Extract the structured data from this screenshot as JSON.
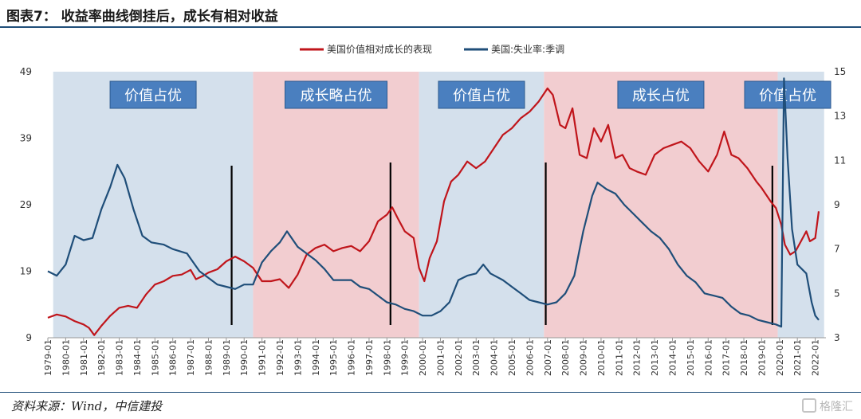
{
  "header": {
    "title": "图表7： 收益率曲线倒挂后，成长有相对收益"
  },
  "footer": {
    "source": "资料来源：Wind，中信建投",
    "watermark": "格隆汇"
  },
  "chart_data": {
    "type": "line",
    "legend": [
      "美国价值相对成长的表现",
      "美国:失业率:季调"
    ],
    "legend_position": "top-center",
    "x_tick_labels": [
      "1979-01",
      "1980-01",
      "1981-01",
      "1982-01",
      "1983-01",
      "1984-01",
      "1985-01",
      "1986-01",
      "1987-01",
      "1988-01",
      "1989-01",
      "1990-01",
      "1991-01",
      "1992-01",
      "1993-01",
      "1994-01",
      "1995-01",
      "1996-01",
      "1997-01",
      "1998-01",
      "1999-01",
      "2000-01",
      "2001-01",
      "2002-01",
      "2003-01",
      "2004-01",
      "2005-01",
      "2006-01",
      "2007-01",
      "2008-01",
      "2009-01",
      "2010-01",
      "2011-01",
      "2012-01",
      "2013-01",
      "2014-01",
      "2015-01",
      "2016-01",
      "2017-01",
      "2018-01",
      "2019-01",
      "2020-01",
      "2021-01",
      "2022-01"
    ],
    "y_left": {
      "ticks": [
        "9",
        "19",
        "29",
        "39",
        "49"
      ],
      "range": [
        9,
        49
      ]
    },
    "y_right": {
      "ticks": [
        "3",
        "5",
        "7",
        "9",
        "11",
        "13",
        "15"
      ],
      "range": [
        3,
        15
      ]
    },
    "regions": [
      {
        "label": "价值占优",
        "start": 1979.3,
        "end": 1990.5,
        "color": "#d4e0ec"
      },
      {
        "label": "成长略占优",
        "start": 1990.5,
        "end": 1999.8,
        "color": "#f2cdd0"
      },
      {
        "label": "价值占优",
        "start": 1999.8,
        "end": 2006.8,
        "color": "#d4e0ec"
      },
      {
        "label": "成长占优",
        "start": 2006.8,
        "end": 2019.9,
        "color": "#f2cdd0"
      },
      {
        "label": "价值占优",
        "start": 2019.9,
        "end": 2022.5,
        "color": "#d4e0ec"
      }
    ],
    "inversion_markers": [
      1989.3,
      1998.2,
      2006.9,
      2019.6
    ],
    "series": [
      {
        "name": "美国价值相对成长的表现",
        "axis": "left",
        "color": "#c0151b",
        "points": [
          [
            1979.0,
            12.0
          ],
          [
            1979.5,
            12.5
          ],
          [
            1980.0,
            12.2
          ],
          [
            1980.5,
            11.5
          ],
          [
            1981.0,
            11.0
          ],
          [
            1981.3,
            10.5
          ],
          [
            1981.6,
            9.4
          ],
          [
            1982.0,
            10.8
          ],
          [
            1982.5,
            12.3
          ],
          [
            1983.0,
            13.5
          ],
          [
            1983.5,
            13.8
          ],
          [
            1984.0,
            13.5
          ],
          [
            1984.5,
            15.5
          ],
          [
            1985.0,
            17.0
          ],
          [
            1985.5,
            17.5
          ],
          [
            1986.0,
            18.3
          ],
          [
            1986.5,
            18.5
          ],
          [
            1987.0,
            19.2
          ],
          [
            1987.3,
            17.8
          ],
          [
            1987.7,
            18.3
          ],
          [
            1988.0,
            18.8
          ],
          [
            1988.5,
            19.3
          ],
          [
            1989.0,
            20.5
          ],
          [
            1989.5,
            21.2
          ],
          [
            1990.0,
            20.5
          ],
          [
            1990.5,
            19.5
          ],
          [
            1991.0,
            17.5
          ],
          [
            1991.5,
            17.5
          ],
          [
            1992.0,
            17.8
          ],
          [
            1992.5,
            16.5
          ],
          [
            1993.0,
            18.5
          ],
          [
            1993.5,
            21.5
          ],
          [
            1994.0,
            22.5
          ],
          [
            1994.5,
            23.0
          ],
          [
            1995.0,
            22.0
          ],
          [
            1995.5,
            22.5
          ],
          [
            1996.0,
            22.8
          ],
          [
            1996.5,
            22.0
          ],
          [
            1997.0,
            23.5
          ],
          [
            1997.5,
            26.5
          ],
          [
            1998.0,
            27.5
          ],
          [
            1998.3,
            28.6
          ],
          [
            1998.6,
            27.0
          ],
          [
            1999.0,
            25.0
          ],
          [
            1999.5,
            24.0
          ],
          [
            1999.8,
            19.5
          ],
          [
            2000.1,
            17.5
          ],
          [
            2000.4,
            21.0
          ],
          [
            2000.8,
            23.5
          ],
          [
            2001.2,
            29.5
          ],
          [
            2001.6,
            32.5
          ],
          [
            2002.0,
            33.5
          ],
          [
            2002.5,
            35.5
          ],
          [
            2003.0,
            34.5
          ],
          [
            2003.5,
            35.5
          ],
          [
            2004.0,
            37.5
          ],
          [
            2004.5,
            39.5
          ],
          [
            2005.0,
            40.5
          ],
          [
            2005.5,
            42.0
          ],
          [
            2006.0,
            43.0
          ],
          [
            2006.5,
            44.5
          ],
          [
            2007.0,
            46.5
          ],
          [
            2007.3,
            45.5
          ],
          [
            2007.7,
            41.0
          ],
          [
            2008.0,
            40.5
          ],
          [
            2008.4,
            43.5
          ],
          [
            2008.8,
            36.5
          ],
          [
            2009.2,
            36.0
          ],
          [
            2009.6,
            40.5
          ],
          [
            2010.0,
            38.5
          ],
          [
            2010.4,
            41.0
          ],
          [
            2010.8,
            36.0
          ],
          [
            2011.2,
            36.5
          ],
          [
            2011.6,
            34.5
          ],
          [
            2012.0,
            34.0
          ],
          [
            2012.5,
            33.5
          ],
          [
            2013.0,
            36.5
          ],
          [
            2013.5,
            37.5
          ],
          [
            2014.0,
            38.0
          ],
          [
            2014.5,
            38.5
          ],
          [
            2015.0,
            37.5
          ],
          [
            2015.5,
            35.5
          ],
          [
            2016.0,
            34.0
          ],
          [
            2016.5,
            36.5
          ],
          [
            2016.9,
            40.0
          ],
          [
            2017.3,
            36.5
          ],
          [
            2017.7,
            36.0
          ],
          [
            2018.2,
            34.5
          ],
          [
            2018.7,
            32.5
          ],
          [
            2019.0,
            31.5
          ],
          [
            2019.5,
            29.5
          ],
          [
            2019.8,
            28.5
          ],
          [
            2020.1,
            26.0
          ],
          [
            2020.3,
            23.0
          ],
          [
            2020.6,
            21.5
          ],
          [
            2020.9,
            22.0
          ],
          [
            2021.2,
            23.5
          ],
          [
            2021.5,
            25.0
          ],
          [
            2021.7,
            23.5
          ],
          [
            2022.0,
            24.0
          ],
          [
            2022.2,
            28.0
          ]
        ]
      },
      {
        "name": "美国:失业率:季调",
        "axis": "right",
        "color": "#1f4e79",
        "points": [
          [
            1979.0,
            6.0
          ],
          [
            1979.5,
            5.8
          ],
          [
            1980.0,
            6.3
          ],
          [
            1980.5,
            7.6
          ],
          [
            1981.0,
            7.4
          ],
          [
            1981.5,
            7.5
          ],
          [
            1982.0,
            8.8
          ],
          [
            1982.5,
            9.8
          ],
          [
            1982.9,
            10.8
          ],
          [
            1983.3,
            10.2
          ],
          [
            1983.8,
            8.8
          ],
          [
            1984.3,
            7.6
          ],
          [
            1984.8,
            7.3
          ],
          [
            1985.5,
            7.2
          ],
          [
            1986.0,
            7.0
          ],
          [
            1986.8,
            6.8
          ],
          [
            1987.5,
            6.0
          ],
          [
            1988.0,
            5.7
          ],
          [
            1988.5,
            5.4
          ],
          [
            1989.0,
            5.3
          ],
          [
            1989.5,
            5.2
          ],
          [
            1990.0,
            5.4
          ],
          [
            1990.5,
            5.4
          ],
          [
            1991.0,
            6.4
          ],
          [
            1991.5,
            6.9
          ],
          [
            1992.0,
            7.3
          ],
          [
            1992.4,
            7.8
          ],
          [
            1993.0,
            7.1
          ],
          [
            1993.5,
            6.8
          ],
          [
            1994.0,
            6.5
          ],
          [
            1994.5,
            6.1
          ],
          [
            1995.0,
            5.6
          ],
          [
            1995.5,
            5.6
          ],
          [
            1996.0,
            5.6
          ],
          [
            1996.5,
            5.3
          ],
          [
            1997.0,
            5.2
          ],
          [
            1997.5,
            4.9
          ],
          [
            1998.0,
            4.6
          ],
          [
            1998.5,
            4.5
          ],
          [
            1999.0,
            4.3
          ],
          [
            1999.5,
            4.2
          ],
          [
            2000.0,
            4.0
          ],
          [
            2000.5,
            4.0
          ],
          [
            2001.0,
            4.2
          ],
          [
            2001.5,
            4.6
          ],
          [
            2002.0,
            5.6
          ],
          [
            2002.5,
            5.8
          ],
          [
            2003.0,
            5.9
          ],
          [
            2003.4,
            6.3
          ],
          [
            2003.8,
            5.9
          ],
          [
            2004.5,
            5.6
          ],
          [
            2005.0,
            5.3
          ],
          [
            2005.5,
            5.0
          ],
          [
            2006.0,
            4.7
          ],
          [
            2006.5,
            4.6
          ],
          [
            2007.0,
            4.5
          ],
          [
            2007.5,
            4.6
          ],
          [
            2008.0,
            5.0
          ],
          [
            2008.5,
            5.8
          ],
          [
            2009.0,
            7.8
          ],
          [
            2009.5,
            9.4
          ],
          [
            2009.8,
            10.0
          ],
          [
            2010.3,
            9.7
          ],
          [
            2010.8,
            9.5
          ],
          [
            2011.3,
            9.0
          ],
          [
            2011.8,
            8.6
          ],
          [
            2012.3,
            8.2
          ],
          [
            2012.8,
            7.8
          ],
          [
            2013.3,
            7.5
          ],
          [
            2013.8,
            7.0
          ],
          [
            2014.3,
            6.3
          ],
          [
            2014.8,
            5.8
          ],
          [
            2015.3,
            5.5
          ],
          [
            2015.8,
            5.0
          ],
          [
            2016.3,
            4.9
          ],
          [
            2016.8,
            4.8
          ],
          [
            2017.3,
            4.4
          ],
          [
            2017.8,
            4.1
          ],
          [
            2018.3,
            4.0
          ],
          [
            2018.8,
            3.8
          ],
          [
            2019.3,
            3.7
          ],
          [
            2019.8,
            3.6
          ],
          [
            2020.1,
            3.5
          ],
          [
            2020.25,
            14.7
          ],
          [
            2020.45,
            11.1
          ],
          [
            2020.7,
            7.9
          ],
          [
            2021.0,
            6.3
          ],
          [
            2021.5,
            5.9
          ],
          [
            2021.8,
            4.6
          ],
          [
            2022.0,
            4.0
          ],
          [
            2022.2,
            3.8
          ]
        ]
      }
    ]
  }
}
